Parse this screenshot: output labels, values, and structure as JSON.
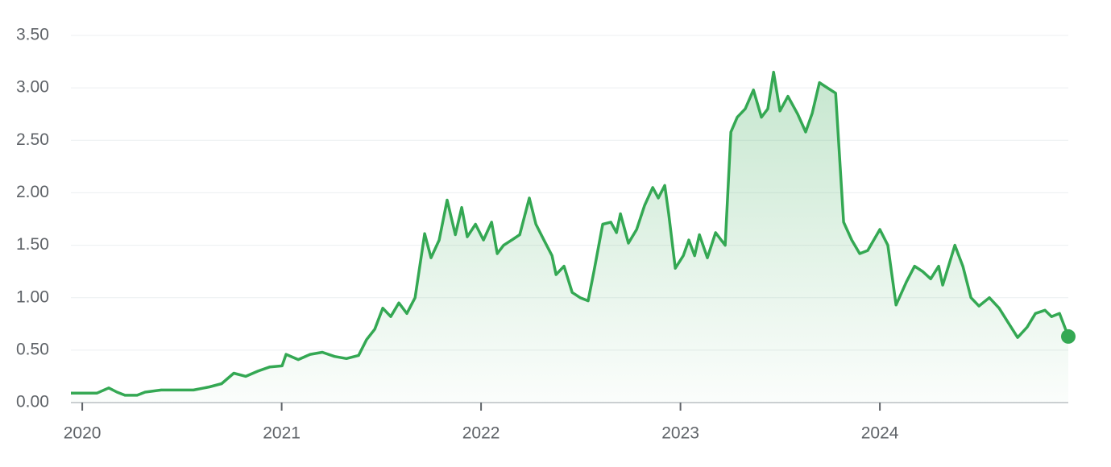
{
  "chart_data": {
    "type": "line",
    "x": [
      2019.943,
      2019.992,
      2020.073,
      2020.133,
      2020.174,
      2020.214,
      2020.275,
      2020.315,
      2020.396,
      2020.477,
      2020.558,
      2020.638,
      2020.699,
      2020.76,
      2020.82,
      2020.881,
      2020.941,
      2021.002,
      2021.022,
      2021.083,
      2021.143,
      2021.204,
      2021.265,
      2021.325,
      2021.386,
      2021.426,
      2021.467,
      2021.507,
      2021.547,
      2021.588,
      2021.628,
      2021.669,
      2021.717,
      2021.749,
      2021.79,
      2021.83,
      2021.871,
      2021.903,
      2021.931,
      2021.972,
      2022.012,
      2022.053,
      2022.081,
      2022.113,
      2022.154,
      2022.194,
      2022.242,
      2022.275,
      2022.315,
      2022.356,
      2022.376,
      2022.416,
      2022.457,
      2022.497,
      2022.537,
      2022.566,
      2022.61,
      2022.651,
      2022.679,
      2022.699,
      2022.739,
      2022.78,
      2022.82,
      2022.861,
      2022.889,
      2022.921,
      2022.941,
      2022.974,
      2023.014,
      2023.042,
      2023.071,
      2023.095,
      2023.135,
      2023.176,
      2023.204,
      2023.224,
      2023.253,
      2023.285,
      2023.325,
      2023.366,
      2023.406,
      2023.438,
      2023.467,
      2023.499,
      2023.539,
      2023.588,
      2023.628,
      2023.661,
      2023.697,
      2023.737,
      2023.778,
      2023.818,
      2023.859,
      2023.899,
      2023.939,
      2024.0,
      2024.04,
      2024.081,
      2024.133,
      2024.174,
      2024.214,
      2024.255,
      2024.295,
      2024.315,
      2024.376,
      2024.416,
      2024.457,
      2024.497,
      2024.549,
      2024.598,
      2024.638,
      2024.691,
      2024.739,
      2024.78,
      2024.828,
      2024.861,
      2024.901,
      2024.945
    ],
    "series": [
      {
        "color": "#34a853",
        "values": [
          0.09,
          0.09,
          0.09,
          0.14,
          0.1,
          0.07,
          0.07,
          0.1,
          0.12,
          0.12,
          0.12,
          0.15,
          0.18,
          0.28,
          0.25,
          0.3,
          0.34,
          0.35,
          0.46,
          0.41,
          0.46,
          0.48,
          0.44,
          0.42,
          0.45,
          0.6,
          0.7,
          0.9,
          0.82,
          0.95,
          0.85,
          1.0,
          1.61,
          1.38,
          1.55,
          1.93,
          1.6,
          1.86,
          1.58,
          1.7,
          1.55,
          1.72,
          1.42,
          1.5,
          1.55,
          1.6,
          1.95,
          1.7,
          1.55,
          1.4,
          1.22,
          1.3,
          1.05,
          1.0,
          0.97,
          1.25,
          1.7,
          1.72,
          1.62,
          1.8,
          1.52,
          1.65,
          1.88,
          2.05,
          1.95,
          2.07,
          1.8,
          1.28,
          1.4,
          1.55,
          1.4,
          1.6,
          1.38,
          1.62,
          1.55,
          1.5,
          2.58,
          2.72,
          2.8,
          2.98,
          2.72,
          2.8,
          3.15,
          2.78,
          2.92,
          2.75,
          2.58,
          2.76,
          3.05,
          3.0,
          2.95,
          1.72,
          1.55,
          1.42,
          1.45,
          1.65,
          1.5,
          0.93,
          1.15,
          1.3,
          1.25,
          1.18,
          1.3,
          1.12,
          1.5,
          1.3,
          1.0,
          0.92,
          1.0,
          0.9,
          0.78,
          0.62,
          0.72,
          0.85,
          0.88,
          0.82,
          0.85,
          0.63
        ]
      }
    ],
    "xlim": [
      2019.943,
      2024.945
    ],
    "xticks": [
      2020,
      2021,
      2022,
      2023,
      2024
    ],
    "ylim": [
      0,
      3.5
    ],
    "yticks": [
      {
        "value": 0,
        "label": "0.00"
      },
      {
        "value": 0.5,
        "label": "0.50"
      },
      {
        "value": 1,
        "label": "1.00"
      },
      {
        "value": 1.5,
        "label": "1.50"
      },
      {
        "value": 2,
        "label": "2.00"
      },
      {
        "value": 2.5,
        "label": "2.50"
      },
      {
        "value": 3,
        "label": "3.00"
      },
      {
        "value": 3.5,
        "label": "3.50"
      }
    ],
    "grid": true
  }
}
